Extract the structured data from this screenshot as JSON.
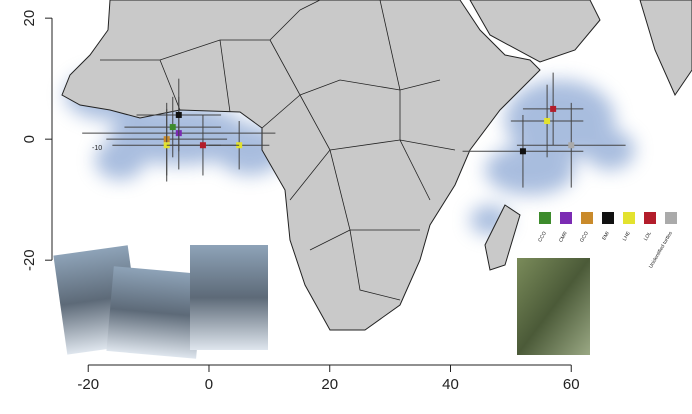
{
  "chart_data": {
    "type": "scatter",
    "xlim": [
      -26,
      80
    ],
    "ylim": [
      -36,
      23
    ],
    "xticks": [
      -20,
      0,
      20,
      40,
      60
    ],
    "yticks": [
      -20,
      0,
      20
    ],
    "annotation": "-10",
    "series": [
      {
        "name": "CCO",
        "color": "#3d8b2c",
        "x": [
          -6
        ],
        "values": [
          2
        ],
        "xerr": [
          8
        ],
        "yerr": [
          5
        ]
      },
      {
        "name": "CMR",
        "color": "#7b2bb3",
        "x": [
          -5
        ],
        "values": [
          1
        ],
        "xerr": [
          16
        ],
        "yerr": [
          6
        ]
      },
      {
        "name": "GCO",
        "color": "#c98a2b",
        "x": [
          -7
        ],
        "values": [
          0
        ],
        "xerr": [
          10
        ],
        "yerr": [
          6
        ]
      },
      {
        "name": "EMI",
        "color": "#111111",
        "x": [
          -5,
          52
        ],
        "values": [
          4,
          -2
        ],
        "xerr": [
          7,
          10
        ],
        "yerr": [
          6,
          6
        ]
      },
      {
        "name": "LHE",
        "color": "#e3e22e",
        "x": [
          -7,
          5,
          56
        ],
        "values": [
          -1,
          -1,
          3
        ],
        "xerr": [
          9,
          5,
          6
        ],
        "yerr": [
          6,
          4,
          6
        ]
      },
      {
        "name": "LOL",
        "color": "#b31d2b",
        "x": [
          -1,
          57
        ],
        "values": [
          -1,
          5
        ],
        "xerr": [
          6,
          5
        ],
        "yerr": [
          5,
          6
        ]
      },
      {
        "name": "Unidentified turtles",
        "color": "#aaaaaa",
        "x": [
          60
        ],
        "values": [
          -1
        ],
        "xerr": [
          9
        ],
        "yerr": [
          7
        ]
      }
    ]
  }
}
